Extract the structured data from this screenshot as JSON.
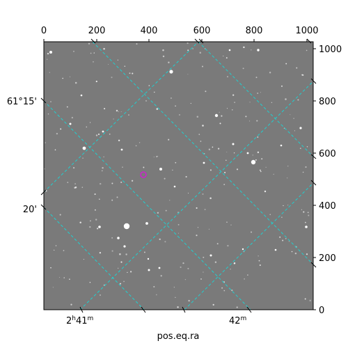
{
  "axes": {
    "xlabel": "pos.eq.ra",
    "top_pixel_ticks": [
      "0",
      "200",
      "400",
      "600",
      "800",
      "1000"
    ],
    "right_pixel_ticks": [
      "0",
      "200",
      "400",
      "600",
      "800",
      "1000"
    ],
    "ra_tick_labels": [
      {
        "h": "2",
        "h_unit": "h",
        "m": "41",
        "m_unit": "m"
      },
      {
        "h": "",
        "h_unit": "",
        "m": "42",
        "m_unit": "m"
      }
    ],
    "dec_tick_labels": [
      "61°15'",
      "20'"
    ]
  },
  "image": {
    "background_color": "#7a7a7a",
    "grid_color": "#20d0d0",
    "marker_color": "#cc22cc"
  }
}
